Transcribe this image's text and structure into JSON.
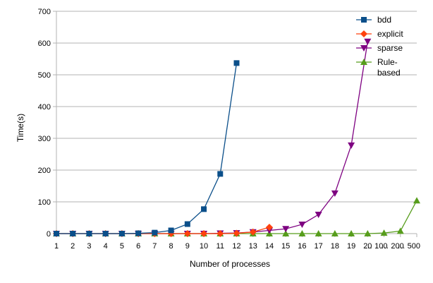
{
  "chart_data": {
    "type": "line",
    "title": "",
    "xlabel": "Number of processes",
    "ylabel": "Time(s)",
    "categories": [
      "1",
      "2",
      "3",
      "4",
      "5",
      "6",
      "7",
      "8",
      "9",
      "10",
      "11",
      "12",
      "13",
      "14",
      "15",
      "16",
      "17",
      "18",
      "19",
      "20",
      "… 100",
      "… 200",
      "… 500"
    ],
    "ylim": [
      0,
      700
    ],
    "yticks": [
      0,
      100,
      200,
      300,
      400,
      500,
      600,
      700
    ],
    "grid": "horizontal",
    "legend_position": "top-right",
    "series": [
      {
        "name": "bdd",
        "color": "#0b4f8a",
        "marker": "square",
        "values": [
          0,
          0,
          0,
          0,
          0,
          1,
          3,
          10,
          30,
          77,
          188,
          537,
          null,
          null,
          null,
          null,
          null,
          null,
          null,
          null,
          null,
          null,
          null
        ]
      },
      {
        "name": "explicit",
        "color": "#ff420e",
        "marker": "diamond",
        "values": [
          0,
          0,
          0,
          0,
          0,
          0,
          0,
          0,
          0,
          0,
          0,
          1,
          5,
          20,
          null,
          null,
          null,
          null,
          null,
          null,
          null,
          null,
          null
        ]
      },
      {
        "name": "sparse",
        "color": "#7e0081",
        "marker": "triangle-down",
        "values": [
          0,
          0,
          0,
          0,
          0,
          0,
          0,
          0,
          0,
          0,
          1,
          2,
          5,
          10,
          15,
          29,
          60,
          127,
          278,
          605,
          null,
          null,
          null
        ]
      },
      {
        "name": "Rule-based",
        "color": "#579d1c",
        "marker": "triangle-up",
        "values": [
          0,
          0,
          0,
          0,
          0,
          0,
          0,
          0,
          0,
          0,
          0,
          0,
          0,
          0,
          0,
          0,
          0,
          0,
          0,
          0,
          2,
          8,
          104
        ]
      }
    ]
  }
}
